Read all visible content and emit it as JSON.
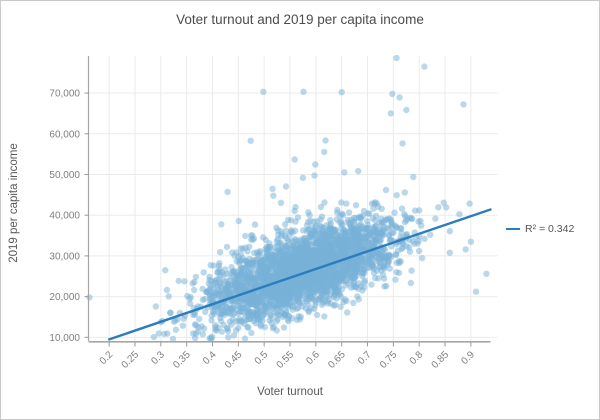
{
  "window": {
    "background": "#ffffff",
    "border_color": "#c9c9c9"
  },
  "chart_data": {
    "type": "scatter",
    "title": "Voter turnout and 2019 per capita income",
    "xlabel": "Voter turnout",
    "ylabel": "2019 per capita income",
    "x_ticks": [
      0.2,
      0.25,
      0.3,
      0.35,
      0.4,
      0.45,
      0.5,
      0.55,
      0.6,
      0.65,
      0.7,
      0.75,
      0.8,
      0.85,
      0.9
    ],
    "x_tick_labels": [
      "0.2",
      "0.25",
      "0.3",
      "0.35",
      "0.4",
      "0.45",
      "0.5",
      "0.55",
      "0.6",
      "0.65",
      "0.7",
      "0.75",
      "0.8",
      "0.85",
      "0.9"
    ],
    "y_ticks": [
      10000,
      20000,
      30000,
      40000,
      50000,
      60000,
      70000
    ],
    "y_tick_labels": [
      "10,000",
      "20,000",
      "30,000",
      "40,000",
      "50,000",
      "60,000",
      "70,000"
    ],
    "xlim": [
      0.16,
      0.938
    ],
    "ylim": [
      9100,
      79100
    ],
    "grid": true,
    "colors": {
      "point": "#78b1d7",
      "trendline": "#2d7cbc",
      "gridline": "#ebebeb",
      "axis": "#a6a6a6",
      "tick": "#999999"
    },
    "legend": {
      "label": "R² = 0.342",
      "position": "right-middle"
    },
    "trendline": {
      "x1": 0.2,
      "y1": 9500,
      "x2": 0.938,
      "y2": 41400,
      "r_squared": 0.342
    },
    "scatter_style": {
      "radius": 3.2,
      "opacity": 0.5
    },
    "point_cloud": {
      "approximation": true,
      "n": 3000,
      "seed": 11,
      "x_mean": 0.575,
      "x_sd": 0.09,
      "x_min": 0.19,
      "x_max": 0.935,
      "y_intercept": 1500,
      "y_slope": 43225,
      "y_noise_sd": 4600,
      "y_tail_prob": 0.045,
      "y_tail_mean": 8500,
      "y_min": 9300,
      "y_max": 78600
    },
    "notable_points": [
      [
        0.162,
        19800
      ],
      [
        0.756,
        78600
      ],
      [
        0.81,
        76500
      ],
      [
        0.576,
        70300
      ],
      [
        0.65,
        70200
      ],
      [
        0.748,
        69800
      ],
      [
        0.762,
        68900
      ],
      [
        0.93,
        25600
      ],
      [
        0.91,
        21200
      ],
      [
        0.89,
        31600
      ],
      [
        0.9,
        33500
      ]
    ]
  }
}
